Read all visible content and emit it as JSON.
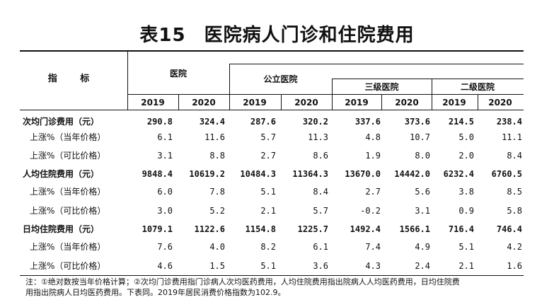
{
  "title": {
    "number": "表15",
    "text": "医院病人门诊和住院费用"
  },
  "header": {
    "stub": "指  标",
    "groups": {
      "hospital": "医院",
      "public": "公立医院",
      "tertiary": "三级医院",
      "secondary": "二级医院"
    },
    "years": [
      "2019",
      "2020",
      "2019",
      "2020",
      "2019",
      "2020",
      "2019",
      "2020"
    ]
  },
  "rows": [
    {
      "label": "次均门诊费用（元）",
      "type": "main",
      "values": [
        "290.8",
        "324.4",
        "287.6",
        "320.2",
        "337.6",
        "373.6",
        "214.5",
        "238.4"
      ]
    },
    {
      "label": "上涨%（当年价格）",
      "type": "sub",
      "values": [
        "6.1",
        "11.6",
        "5.7",
        "11.3",
        "4.8",
        "10.7",
        "5.0",
        "11.1"
      ]
    },
    {
      "label": "上涨%（可比价格）",
      "type": "sub",
      "values": [
        "3.1",
        "8.8",
        "2.7",
        "8.6",
        "1.9",
        "8.0",
        "2.0",
        "8.4"
      ]
    },
    {
      "label": "人均住院费用（元）",
      "type": "main",
      "values": [
        "9848.4",
        "10619.2",
        "10484.3",
        "11364.3",
        "13670.0",
        "14442.0",
        "6232.4",
        "6760.5"
      ]
    },
    {
      "label": "上涨%（当年价格）",
      "type": "sub",
      "values": [
        "6.0",
        "7.8",
        "5.1",
        "8.4",
        "2.7",
        "5.6",
        "3.8",
        "8.5"
      ]
    },
    {
      "label": "上涨%（可比价格）",
      "type": "sub",
      "values": [
        "3.0",
        "5.2",
        "2.1",
        "5.7",
        "-0.2",
        "3.1",
        "0.9",
        "5.8"
      ]
    },
    {
      "label": "日均住院费用（元）",
      "type": "main",
      "values": [
        "1079.1",
        "1122.6",
        "1154.8",
        "1225.7",
        "1492.4",
        "1566.1",
        "716.4",
        "746.4"
      ]
    },
    {
      "label": "上涨%（当年价格）",
      "type": "sub",
      "values": [
        "7.6",
        "4.0",
        "8.2",
        "6.1",
        "7.4",
        "4.9",
        "5.1",
        "4.2"
      ]
    },
    {
      "label": "上涨%（可比价格）",
      "type": "sub",
      "values": [
        "4.6",
        "1.5",
        "5.1",
        "3.6",
        "4.3",
        "2.4",
        "2.1",
        "1.6"
      ]
    }
  ],
  "note": {
    "line1": "注：①绝对数按当年价格计算；②次均门诊费用指门诊病人次均医药费用，人均住院费用指出院病人人均医药费用，日均住院费",
    "line2": "用指出院病人日均医药费用。下表同。2019年居民消费价格指数为102.9。"
  }
}
